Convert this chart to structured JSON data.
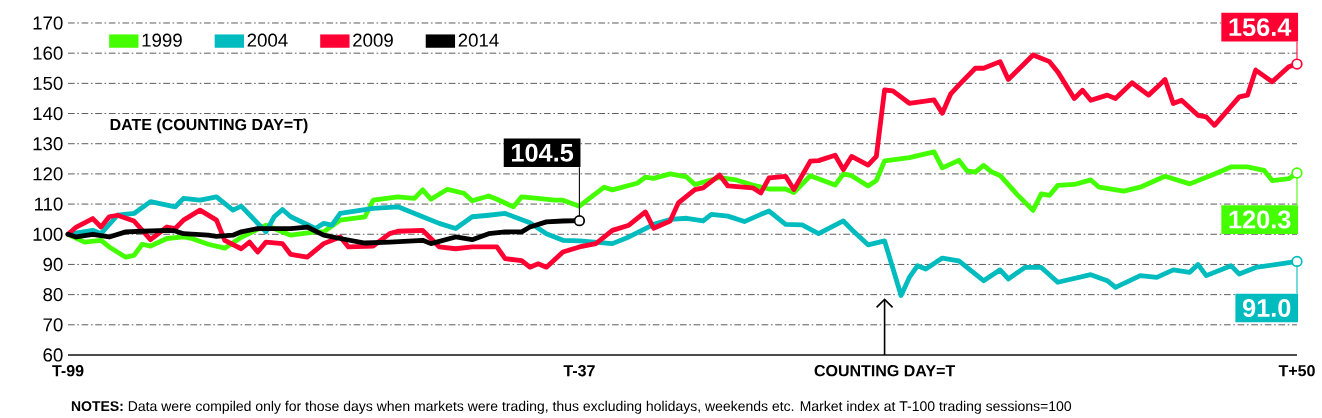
{
  "chart_data": {
    "type": "line",
    "categories": [
      "T-99",
      null,
      null,
      null,
      null,
      null,
      null,
      null,
      null,
      null,
      null,
      null,
      null,
      null,
      null,
      null,
      null,
      null,
      null,
      null,
      null,
      null,
      null,
      null,
      null,
      null,
      null,
      null,
      null,
      null,
      null,
      null,
      null,
      null,
      null,
      null,
      null,
      null,
      null,
      null,
      null,
      null,
      null,
      null,
      null,
      null,
      null,
      null,
      null,
      null,
      null,
      null,
      null,
      null,
      null,
      null,
      null,
      null,
      null,
      null,
      null,
      null,
      "T-37",
      null,
      null,
      null,
      null,
      null,
      null,
      null,
      null,
      null,
      null,
      null,
      null,
      null,
      null,
      null,
      null,
      null,
      null,
      null,
      null,
      null,
      null,
      null,
      null,
      null,
      null,
      null,
      null,
      null,
      null,
      null,
      null,
      null,
      null,
      null,
      null,
      "COUNTING DAY=T",
      null,
      null,
      null,
      null,
      null,
      null,
      null,
      null,
      null,
      null,
      null,
      null,
      null,
      null,
      null,
      null,
      null,
      null,
      null,
      null,
      null,
      null,
      null,
      null,
      null,
      null,
      null,
      null,
      null,
      null,
      null,
      null,
      null,
      null,
      null,
      null,
      null,
      null,
      null,
      null,
      null,
      null,
      null,
      null,
      null,
      null,
      null,
      null,
      null,
      "T+50"
    ],
    "ylim": [
      60,
      170
    ],
    "yticks": [
      60,
      70,
      80,
      90,
      100,
      110,
      120,
      130,
      140,
      150,
      160,
      170
    ],
    "grid": "y",
    "legend": "top left",
    "series": [
      {
        "name": "1999",
        "color": "#44ff00",
        "values": [
          100,
          null,
          97.4,
          null,
          98,
          95.8,
          null,
          92.4,
          93,
          96.7,
          96.1,
          null,
          98.6,
          null,
          99.1,
          98.6,
          null,
          96.7,
          null,
          95.4,
          null,
          99,
          null,
          null,
          103,
          null,
          null,
          99.7,
          null,
          null,
          100.8,
          100.8,
          null,
          104.7,
          null,
          null,
          105.8,
          111.3,
          null,
          null,
          112.4,
          null,
          111.9,
          114.7,
          111.6,
          null,
          114.9,
          null,
          113.6,
          111.1,
          null,
          112.7,
          111.6,
          null,
          109.1,
          112.4,
          null,
          111.9,
          null,
          111.3,
          111.3,
          null,
          109.3,
          null,
          null,
          115.6,
          114.7,
          null,
          null,
          116.9,
          118.9,
          118.5,
          null,
          120,
          null,
          119,
          116.5,
          null,
          null,
          118.8,
          null,
          118,
          null,
          116.3,
          null,
          115,
          null,
          115,
          113.8,
          null,
          119.4,
          null,
          null,
          116.3,
          120,
          119.4,
          null,
          116,
          117.8,
          124.3,
          null,
          null,
          125.4,
          null,
          null,
          127.3,
          122,
          null,
          124.5,
          121,
          120.6,
          122.8,
          120.6,
          119.5,
          null,
          113.4,
          null,
          107.9,
          113.4,
          112.9,
          116.2,
          null,
          116.5,
          null,
          118,
          115.6,
          null,
          null,
          114.3,
          null,
          115.6,
          null,
          null,
          119.2,
          null,
          null,
          116.7,
          null,
          null,
          120,
          null,
          122.3,
          null,
          122.3,
          null,
          121.2,
          117.8,
          null,
          118.4,
          120.3
        ]
      },
      {
        "name": "2004",
        "color": "#00bcbe",
        "values": [
          100,
          null,
          null,
          101.3,
          100.2,
          null,
          106.3,
          null,
          106.9,
          null,
          110.8,
          null,
          null,
          109.1,
          111.9,
          null,
          111.3,
          null,
          112.4,
          null,
          108,
          109.3,
          null,
          null,
          100.8,
          105.8,
          108.2,
          105.8,
          null,
          null,
          101.9,
          103.6,
          103,
          106.9,
          null,
          null,
          null,
          108.6,
          null,
          null,
          109.1,
          null,
          null,
          105.8,
          null,
          103.6,
          null,
          101.9,
          null,
          105.8,
          null,
          106.3,
          null,
          106.9,
          null,
          null,
          103.8,
          null,
          100.2,
          null,
          98,
          null,
          97.8,
          null,
          null,
          null,
          96.9,
          null,
          99.1,
          null,
          101.9,
          103.3,
          null,
          104.9,
          null,
          105.3,
          null,
          104.4,
          106.6,
          null,
          106,
          null,
          104.2,
          null,
          106.6,
          107.7,
          null,
          103.3,
          null,
          103.1,
          null,
          100.2,
          null,
          null,
          104.4,
          101.6,
          null,
          96.5,
          null,
          97.8,
          null,
          79.7,
          85.7,
          89.6,
          88.5,
          null,
          92.1,
          null,
          91.2,
          89,
          null,
          84.6,
          null,
          88.2,
          85.2,
          null,
          89,
          null,
          89,
          null,
          84.1,
          null,
          null,
          null,
          86.6,
          null,
          84.6,
          82.4,
          null,
          null,
          86.3,
          null,
          85.7,
          null,
          88.2,
          null,
          87.4,
          90,
          86.3,
          null,
          null,
          89.6,
          86.8,
          null,
          89,
          null,
          null,
          90.2,
          null,
          91
        ]
      },
      {
        "name": "2009",
        "color": "#ff0033",
        "values": [
          100,
          102.4,
          null,
          105.2,
          102.4,
          105.8,
          106.3,
          null,
          104.4,
          null,
          98.2,
          null,
          102.4,
          101.9,
          104.7,
          null,
          108,
          null,
          104.7,
          98,
          null,
          95.2,
          97.4,
          94.1,
          97.4,
          null,
          96.9,
          93.3,
          null,
          92.4,
          null,
          96.9,
          null,
          99.1,
          95.8,
          null,
          null,
          96.1,
          null,
          100.2,
          101,
          null,
          null,
          101.3,
          98.6,
          95.8,
          null,
          95.2,
          null,
          95.8,
          null,
          null,
          95.8,
          91.9,
          null,
          91.3,
          89.1,
          90.2,
          89.1,
          null,
          94.1,
          null,
          95.8,
          null,
          96.9,
          null,
          101.3,
          null,
          103,
          null,
          107.4,
          102,
          null,
          104.4,
          110.4,
          null,
          114.8,
          115.4,
          null,
          119.6,
          116,
          null,
          null,
          115.4,
          113.7,
          118.7,
          null,
          119.2,
          114.8,
          null,
          124.2,
          124.4,
          null,
          126.2,
          121.4,
          125.8,
          null,
          122.9,
          125.8,
          147.8,
          147.5,
          null,
          143.4,
          null,
          null,
          144.5,
          140.1,
          146.4,
          149.4,
          null,
          155,
          155,
          null,
          157.2,
          151.3,
          null,
          null,
          159.4,
          null,
          157.2,
          153.8,
          null,
          145,
          147.7,
          144.4,
          null,
          146.1,
          145,
          null,
          150.2,
          null,
          146.1,
          148.6,
          151.3,
          143.3,
          144.4,
          null,
          139.4,
          138.9,
          136.1,
          null,
          null,
          145.5,
          146.1,
          154.4,
          null,
          150.5,
          null,
          155.5,
          156.4
        ]
      },
      {
        "name": "2014",
        "color": "#000000",
        "values": [
          100,
          99.1,
          null,
          100,
          null,
          99.1,
          null,
          100.8,
          null,
          101,
          null,
          null,
          101.3,
          101.1,
          100.2,
          null,
          null,
          99.7,
          99.3,
          null,
          99.7,
          100.8,
          null,
          101.9,
          null,
          null,
          101.9,
          101.9,
          null,
          102.4,
          null,
          99.7,
          null,
          98.6,
          null,
          null,
          97.1,
          null,
          null,
          97.4,
          null,
          null,
          null,
          98,
          96.9,
          null,
          null,
          99.1,
          null,
          98.2,
          null,
          100.2,
          null,
          100.8,
          null,
          100.8,
          102.4,
          null,
          104.1,
          null,
          104.4,
          null,
          104.5,
          null,
          null,
          null,
          null,
          null,
          null,
          null,
          null,
          null,
          null,
          null,
          null,
          null,
          null,
          null,
          null,
          null,
          null,
          null,
          null,
          null,
          null,
          null,
          null,
          null,
          null,
          null,
          null,
          null,
          null,
          null,
          null,
          null,
          null,
          null,
          null,
          null,
          null,
          null,
          null,
          null,
          null,
          null,
          null,
          null,
          null,
          null,
          null,
          null,
          null,
          null,
          null,
          null,
          null,
          null,
          null,
          null,
          null,
          null,
          null,
          null,
          null,
          null,
          null,
          null,
          null,
          null,
          null,
          null,
          null,
          null,
          null,
          null,
          null,
          null,
          null,
          null,
          null,
          null,
          null,
          null,
          null,
          null,
          null,
          null,
          null,
          null
        ]
      }
    ],
    "annotations": [
      {
        "text": "104.5",
        "x": "T-37",
        "y": 104.5
      },
      {
        "text": "156.4",
        "x": "T+50",
        "y": 156.4
      },
      {
        "text": "120.3",
        "x": "T+50",
        "y": 120.3
      },
      {
        "text": "91.0",
        "x": "T+50",
        "y": 91.0
      },
      "DATE (COUNTING DAY=T)",
      "**NOTES:** Data were compiled only for those days when markets were trading, thus excluding holidays, weekends etc. Market index at T-100 trading sessions=100"
    ]
  }
}
